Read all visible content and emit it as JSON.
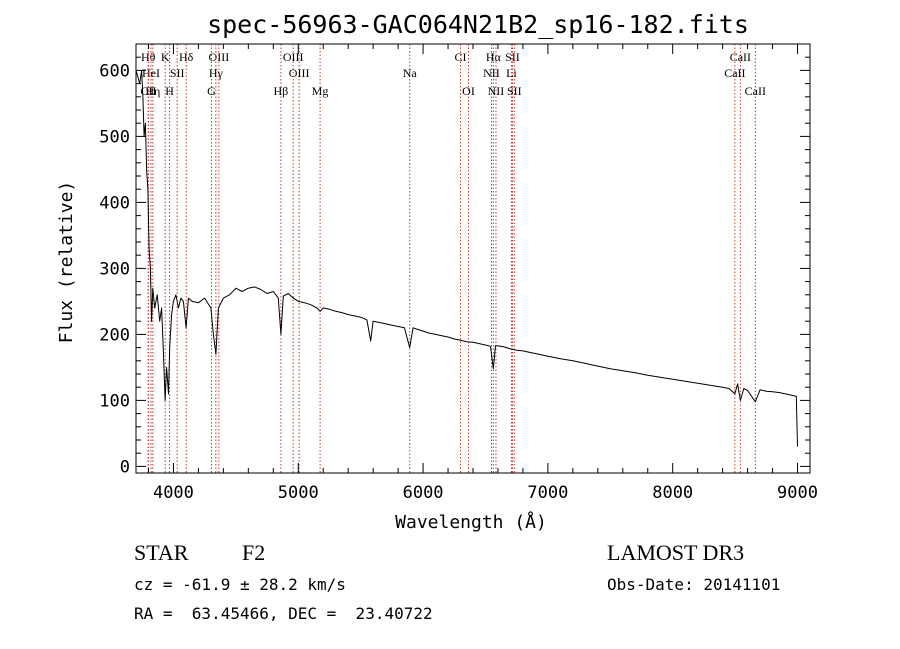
{
  "chart_data": {
    "type": "line",
    "title": "spec-56963-GAC064N21B2_sp16-182.fits",
    "xlabel": "Wavelength (Å)",
    "ylabel": "Flux (relative)",
    "xlim": [
      3700,
      9100
    ],
    "ylim": [
      -10,
      640
    ],
    "xticks": [
      4000,
      5000,
      6000,
      7000,
      8000,
      9000
    ],
    "xtick_labels": [
      "4000",
      "5000",
      "6000",
      "7000",
      "8000",
      "9000"
    ],
    "yticks": [
      0,
      100,
      200,
      300,
      400,
      500,
      600
    ],
    "ytick_labels": [
      "0",
      "100",
      "200",
      "300",
      "400",
      "500",
      "600"
    ],
    "series": [
      {
        "name": "flux",
        "x": [
          3700,
          3715,
          3730,
          3745,
          3755,
          3765,
          3775,
          3785,
          3795,
          3805,
          3815,
          3825,
          3835,
          3850,
          3870,
          3890,
          3905,
          3920,
          3933,
          3945,
          3960,
          3970,
          3985,
          4000,
          4020,
          4040,
          4060,
          4080,
          4101,
          4120,
          4150,
          4200,
          4250,
          4300,
          4320,
          4340,
          4360,
          4400,
          4450,
          4500,
          4550,
          4600,
          4650,
          4700,
          4750,
          4800,
          4840,
          4861,
          4880,
          4920,
          4960,
          5000,
          5050,
          5100,
          5150,
          5175,
          5200,
          5250,
          5300,
          5350,
          5400,
          5450,
          5500,
          5550,
          5580,
          5600,
          5650,
          5700,
          5750,
          5800,
          5850,
          5893,
          5920,
          5950,
          6000,
          6050,
          6100,
          6150,
          6200,
          6250,
          6300,
          6350,
          6400,
          6450,
          6500,
          6540,
          6563,
          6580,
          6620,
          6650,
          6700,
          6750,
          6800,
          6850,
          6900,
          6950,
          7000,
          7100,
          7200,
          7300,
          7400,
          7500,
          7600,
          7700,
          7800,
          7900,
          8000,
          8100,
          8200,
          8300,
          8400,
          8450,
          8498,
          8520,
          8542,
          8570,
          8600,
          8662,
          8700,
          8750,
          8800,
          8850,
          8900,
          8950,
          8990,
          9000
        ],
        "y": [
          600,
          590,
          580,
          600,
          560,
          500,
          520,
          450,
          420,
          330,
          300,
          220,
          270,
          240,
          260,
          220,
          240,
          170,
          100,
          150,
          110,
          180,
          230,
          250,
          260,
          240,
          255,
          250,
          210,
          255,
          250,
          248,
          255,
          240,
          200,
          170,
          240,
          255,
          260,
          270,
          265,
          270,
          272,
          268,
          262,
          265,
          255,
          200,
          258,
          262,
          255,
          250,
          248,
          245,
          240,
          235,
          240,
          238,
          235,
          233,
          230,
          228,
          226,
          222,
          190,
          220,
          218,
          216,
          214,
          212,
          210,
          180,
          210,
          208,
          205,
          202,
          200,
          198,
          196,
          193,
          191,
          189,
          188,
          186,
          184,
          182,
          148,
          183,
          182,
          181,
          178,
          176,
          175,
          173,
          171,
          169,
          167,
          163,
          160,
          156,
          152,
          148,
          145,
          142,
          138,
          135,
          132,
          129,
          126,
          123,
          120,
          118,
          110,
          125,
          100,
          118,
          115,
          98,
          116,
          114,
          113,
          112,
          110,
          108,
          106,
          30
        ]
      }
    ],
    "lines": [
      {
        "name": "Hθ",
        "wavelength": 3798,
        "row": 1
      },
      {
        "name": "HeI",
        "wavelength": 3820,
        "row": 2
      },
      {
        "name": "CII",
        "wavelength": 3799,
        "row": 3
      },
      {
        "name": "Hη",
        "wavelength": 3835,
        "row": 3
      },
      {
        "name": "K",
        "wavelength": 3934,
        "row": 1
      },
      {
        "name": "SII",
        "wavelength": 4030,
        "row": 2
      },
      {
        "name": "H",
        "wavelength": 3969,
        "row": 3
      },
      {
        "name": "Hδ",
        "wavelength": 4102,
        "row": 1
      },
      {
        "name": "OIII",
        "wavelength": 4364,
        "row": 1
      },
      {
        "name": "Hγ",
        "wavelength": 4340,
        "row": 2
      },
      {
        "name": "G",
        "wavelength": 4305,
        "row": 3
      },
      {
        "name": "OIII",
        "wavelength": 4959,
        "row": 1
      },
      {
        "name": "OIII",
        "wavelength": 5007,
        "row": 2
      },
      {
        "name": "Hβ",
        "wavelength": 4861,
        "row": 3
      },
      {
        "name": "Mg",
        "wavelength": 5175,
        "row": 3
      },
      {
        "name": "Na",
        "wavelength": 5893,
        "row": 2
      },
      {
        "name": "CI",
        "wavelength": 6300,
        "row": 1
      },
      {
        "name": "OI",
        "wavelength": 6364,
        "row": 3
      },
      {
        "name": "Hα",
        "wavelength": 6563,
        "row": 1
      },
      {
        "name": "SII",
        "wavelength": 6716,
        "row": 1
      },
      {
        "name": "NII",
        "wavelength": 6548,
        "row": 2
      },
      {
        "name": "Li",
        "wavelength": 6708,
        "row": 2
      },
      {
        "name": "NII",
        "wavelength": 6584,
        "row": 3
      },
      {
        "name": "SII",
        "wavelength": 6731,
        "row": 3
      },
      {
        "name": "CaII",
        "wavelength": 8542,
        "row": 1
      },
      {
        "name": "CaII",
        "wavelength": 8498,
        "row": 2
      },
      {
        "name": "CaII",
        "wavelength": 8662,
        "row": 3
      }
    ],
    "grid": false,
    "legend": "none"
  },
  "info": {
    "class_label": "STAR",
    "subclass": "F2",
    "survey": "LAMOST DR3",
    "cz": "cz = -61.9 ± 28.2 km/s",
    "obs_date": "Obs-Date: 20141101",
    "coords": "RA =  63.45466, DEC =  23.40722"
  }
}
